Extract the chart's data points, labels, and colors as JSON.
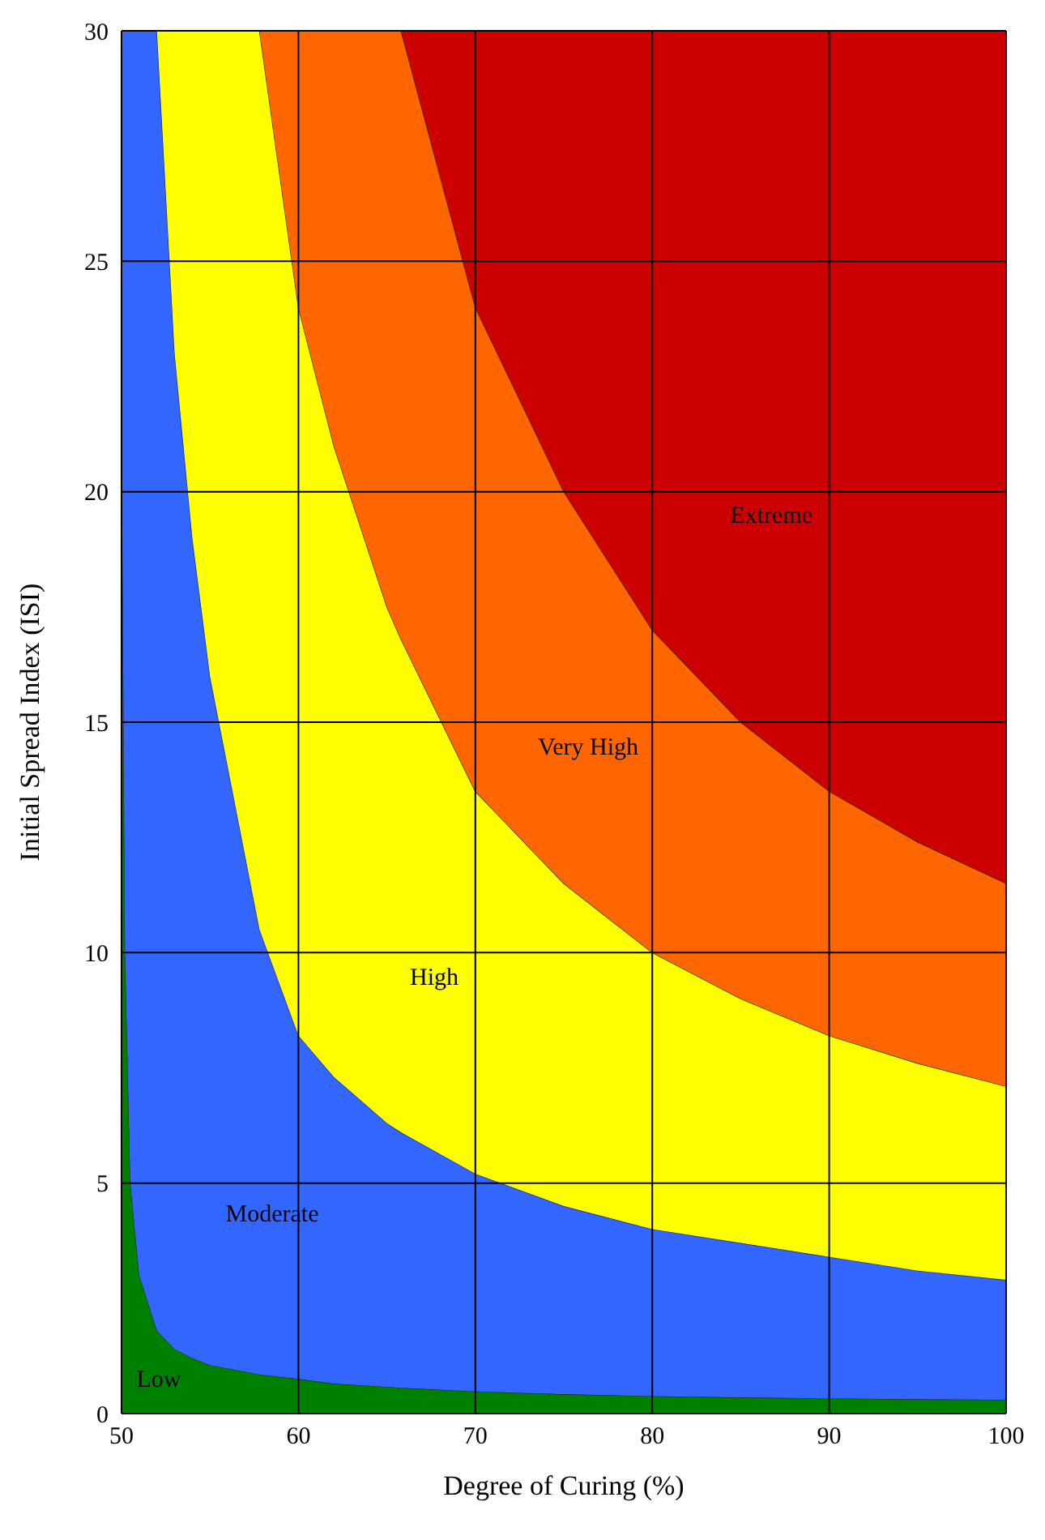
{
  "chart_data": {
    "type": "area",
    "stacked": true,
    "xlabel": "Degree of Curing (%)",
    "ylabel": "Initial Spread Index (ISI)",
    "x": [
      50,
      50.2,
      50.5,
      51,
      52,
      53,
      54,
      55,
      57.8,
      60,
      62,
      65,
      65.8,
      70,
      75,
      80,
      85,
      90,
      95,
      100
    ],
    "series": [
      {
        "color": "#008000",
        "values": [
          22,
          10,
          5,
          3,
          1.8,
          1.4,
          1.2,
          1.05,
          0.85,
          0.75,
          0.65,
          0.58,
          0.56,
          0.48,
          0.42,
          0.38,
          0.35,
          0.33,
          0.31,
          0.3
        ]
      },
      {
        "color": "#3366ff",
        "values": [
          8,
          20,
          25,
          27,
          28.2,
          21.6,
          17.8,
          14.95,
          9.65,
          7.45,
          6.65,
          5.72,
          5.54,
          4.72,
          4.08,
          3.62,
          3.35,
          3.07,
          2.79,
          2.6
        ]
      },
      {
        "color": "#ffff00",
        "values": [
          0,
          0,
          0,
          0,
          0,
          7,
          11,
          14,
          19.5,
          15.8,
          13.7,
          11.2,
          10.7,
          8.3,
          7,
          6,
          5.3,
          4.8,
          4.5,
          4.2
        ]
      },
      {
        "color": "#ff6600",
        "values": [
          0,
          0,
          0,
          0,
          0,
          0,
          0,
          0,
          0,
          6,
          9,
          12.5,
          13.2,
          10.5,
          8.5,
          7,
          6,
          5.3,
          4.8,
          4.4
        ]
      },
      {
        "color": "#cc0000",
        "values": [
          0,
          0,
          0,
          0,
          0,
          0,
          0,
          0,
          0,
          0,
          0,
          0,
          0,
          6,
          10,
          13,
          15,
          16.5,
          17.6,
          18.5
        ]
      }
    ],
    "xlim": [
      50,
      100
    ],
    "xticks": [
      50,
      60,
      70,
      80,
      90,
      100
    ],
    "ylim": [
      0,
      30
    ],
    "yticks": [
      0,
      5,
      10,
      15,
      20,
      25,
      30
    ],
    "grid": true,
    "annotations": [
      "Extreme",
      "Very High",
      "High",
      "Moderate",
      "Low"
    ]
  }
}
